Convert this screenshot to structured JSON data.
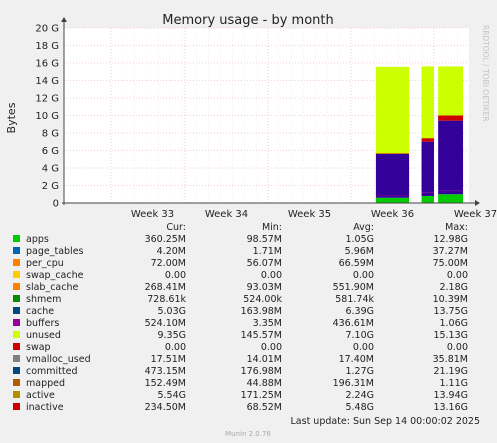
{
  "chart_data": {
    "type": "area",
    "title": "Memory usage - by month",
    "ylabel": "Bytes",
    "side_label": "RRDTOOL / TOBI OETIKER",
    "y_ticks": [
      "0",
      "2 G",
      "4 G",
      "6 G",
      "8 G",
      "10 G",
      "12 G",
      "14 G",
      "16 G",
      "18 G",
      "20 G"
    ],
    "ylim": [
      0,
      20
    ],
    "x_ticks": [
      "Week 33",
      "Week 34",
      "Week 35",
      "Week 36",
      "Week 37"
    ],
    "grid": true,
    "series_order": [
      "apps",
      "page_tables",
      "per_cpu",
      "swap_cache",
      "slab_cache",
      "shmem",
      "cache",
      "buffers",
      "unused",
      "swap",
      "vmalloc_used",
      "committed",
      "mapped",
      "active",
      "inactive"
    ],
    "data_segments": [
      {
        "x_start": 36.3,
        "x_end": 36.7,
        "values_gb": {
          "apps": 0.6,
          "slab_cache": 0.3,
          "shmem": 0.01,
          "cache": 4.7,
          "buffers": 0.05,
          "unused": 9.9
        }
      },
      {
        "x_start": 36.85,
        "x_end": 37.0,
        "values_gb": {
          "apps": 0.8,
          "slab_cache": 0.4,
          "shmem": 0.01,
          "cache": 5.8,
          "buffers": 0.4,
          "unused": 8.2
        }
      },
      {
        "x_start": 37.05,
        "x_end": 37.35,
        "values_gb": {
          "apps": 1.0,
          "slab_cache": 0.4,
          "shmem": 0.01,
          "cache": 8.0,
          "buffers": 0.6,
          "unused": 5.6
        }
      }
    ]
  },
  "legend": {
    "headers": {
      "cur": "Cur:",
      "min": "Min:",
      "avg": "Avg:",
      "max": "Max:"
    },
    "rows": [
      {
        "name": "apps",
        "color": "#00cc00",
        "cur": "360.25M",
        "min": "98.57M",
        "avg": "1.05G",
        "max": "12.98G"
      },
      {
        "name": "page_tables",
        "color": "#0066b3",
        "cur": "4.20M",
        "min": "1.71M",
        "avg": "5.96M",
        "max": "37.27M"
      },
      {
        "name": "per_cpu",
        "color": "#ff8000",
        "cur": "72.00M",
        "min": "56.07M",
        "avg": "66.59M",
        "max": "75.00M"
      },
      {
        "name": "swap_cache",
        "color": "#ffcc00",
        "cur": "0.00",
        "min": "0.00",
        "avg": "0.00",
        "max": "0.00"
      },
      {
        "name": "slab_cache",
        "color": "#330099",
        "cur": "268.41M",
        "min": "93.03M",
        "avg": "551.90M",
        "max": "2.18G"
      },
      {
        "name": "shmem",
        "color": "#990099",
        "cur": "728.61k",
        "min": "524.00k",
        "avg": "581.74k",
        "max": "10.39M"
      },
      {
        "name": "cache",
        "color": "#ccff00",
        "cur": "5.03G",
        "min": "163.98M",
        "avg": "6.39G",
        "max": "13.75G"
      },
      {
        "name": "buffers",
        "color": "#ff0000",
        "cur": "524.10M",
        "min": "3.35M",
        "avg": "436.61M",
        "max": "1.06G"
      },
      {
        "name": "unused",
        "color": "#808080",
        "cur": "9.35G",
        "min": "145.57M",
        "avg": "7.10G",
        "max": "15.13G"
      },
      {
        "name": "swap",
        "color": "#008f00",
        "cur": "0.00",
        "min": "0.00",
        "avg": "0.00",
        "max": "0.00"
      },
      {
        "name": "vmalloc_used",
        "color": "#00487d",
        "cur": "17.51M",
        "min": "14.01M",
        "avg": "17.40M",
        "max": "35.81M"
      },
      {
        "name": "committed",
        "color": "#b35a00",
        "cur": "473.15M",
        "min": "176.98M",
        "avg": "1.27G",
        "max": "21.19G"
      },
      {
        "name": "mapped",
        "color": "#b38f00",
        "cur": "152.49M",
        "min": "44.88M",
        "avg": "196.31M",
        "max": "1.11G"
      },
      {
        "name": "active",
        "color": "#6b006b",
        "cur": "5.54G",
        "min": "171.25M",
        "avg": "2.24G",
        "max": "13.94G"
      },
      {
        "name": "inactive",
        "color": "#8fb300",
        "cur": "234.50M",
        "min": "68.52M",
        "avg": "5.48G",
        "max": "13.16G"
      }
    ]
  },
  "swatch_colors": [
    "#00cc00",
    "#0066b3",
    "#ff8000",
    "#ffcc00",
    "#ff8000",
    "#008f00",
    "#00487d",
    "#990099",
    "#ccff00",
    "#cc0000",
    "#808080",
    "#00487d",
    "#b35a00",
    "#b38f00",
    "#cc0000"
  ],
  "last_update": "Last update: Sun Sep 14 00:00:02 2025",
  "footer": "Munin 2.0.76"
}
